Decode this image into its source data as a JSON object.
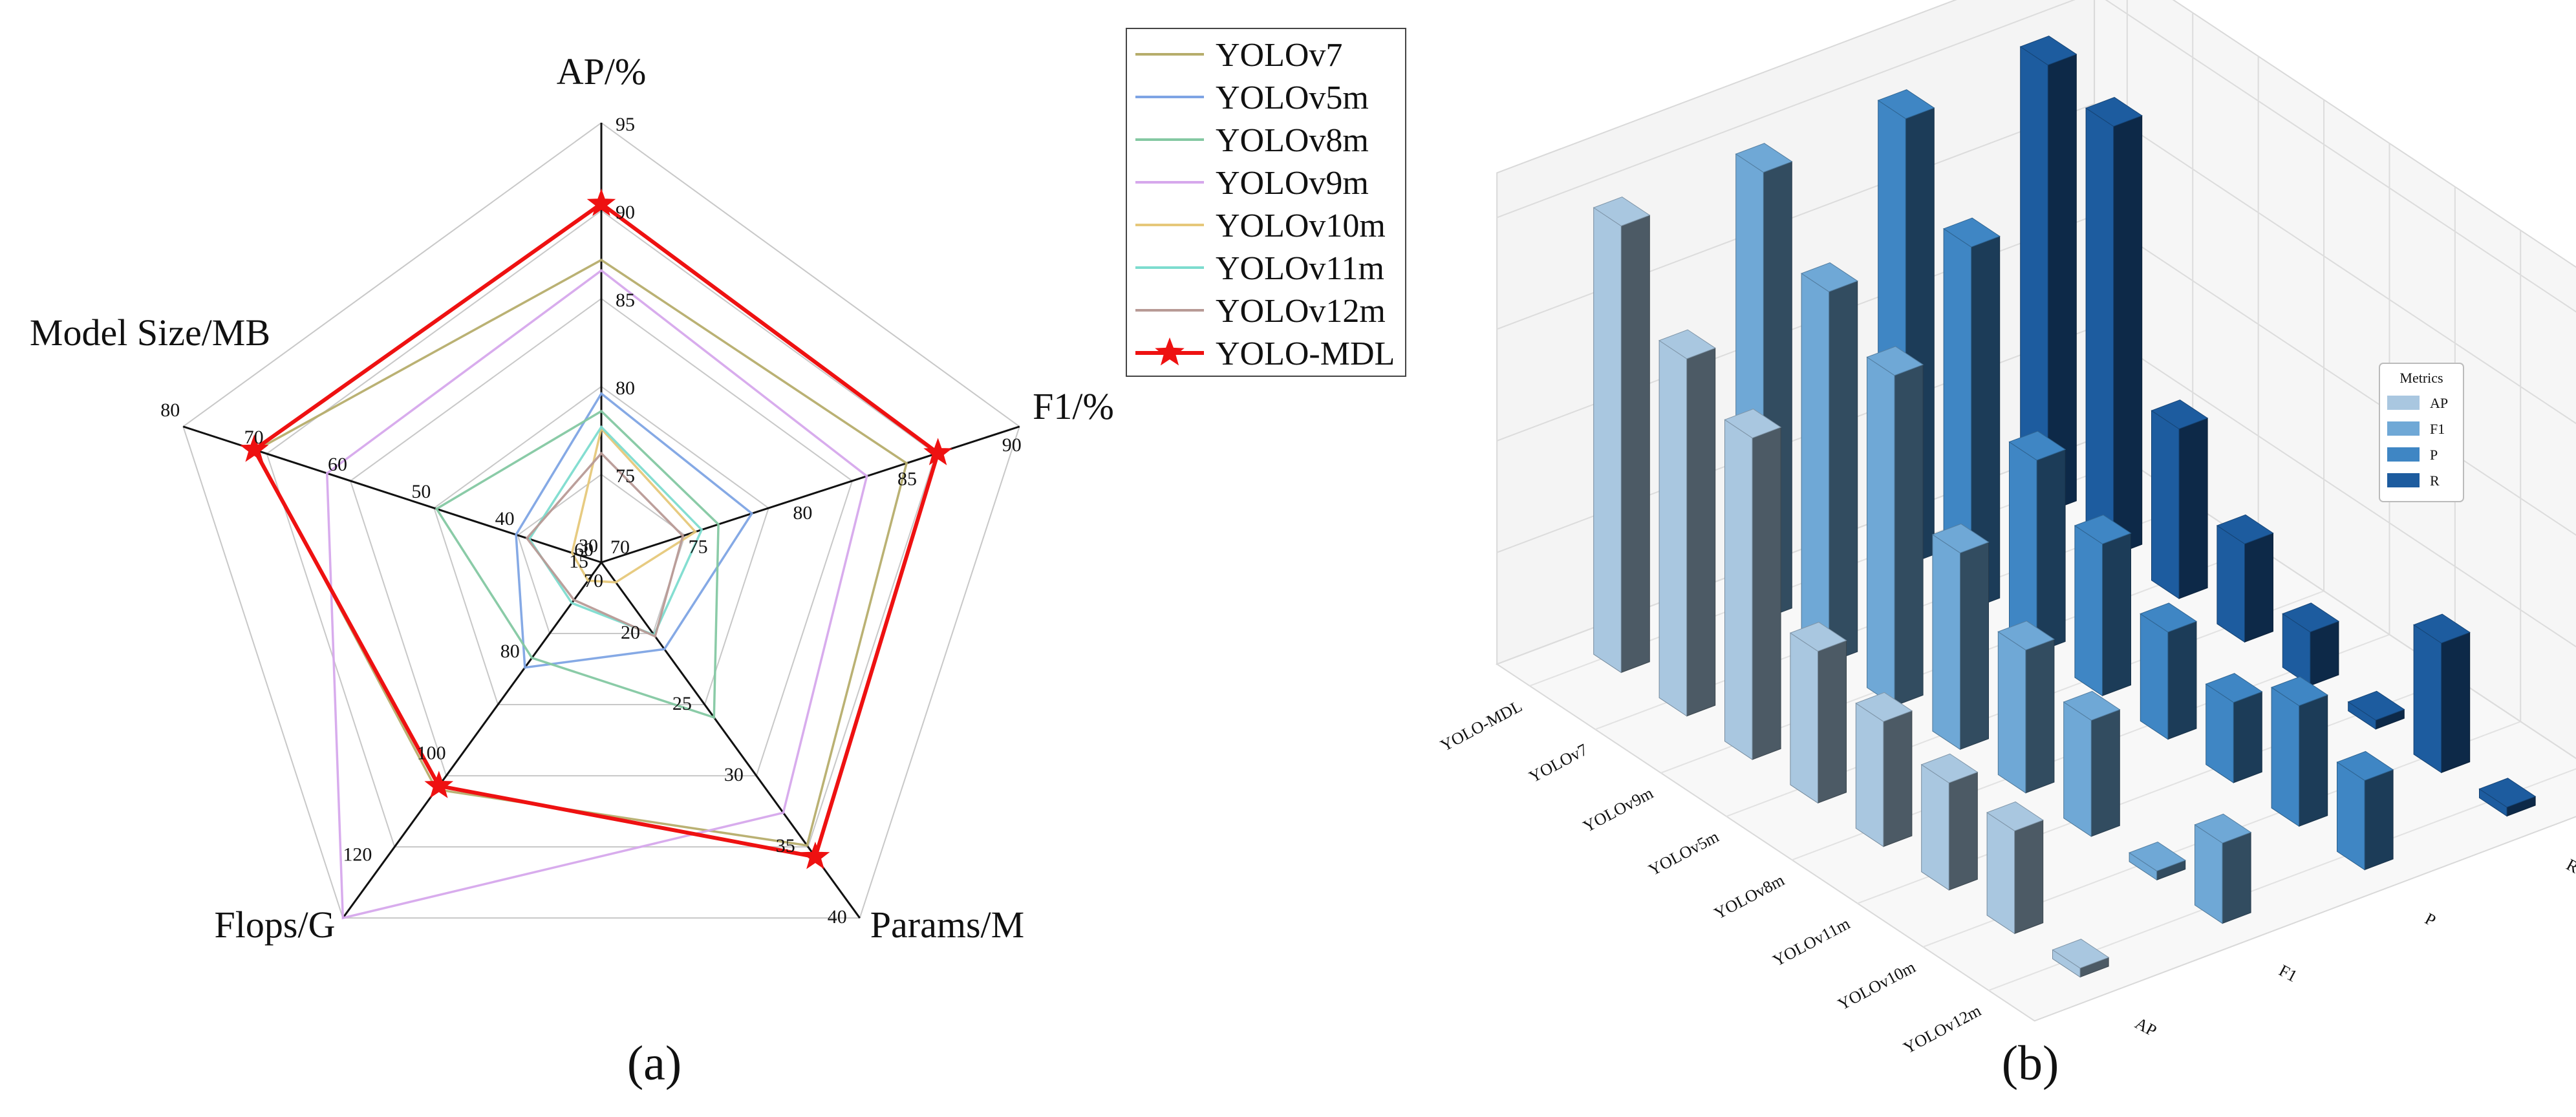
{
  "captions": {
    "a": "(a)",
    "b": "(b)"
  },
  "chart_data": [
    {
      "type": "radar",
      "panel": "(a)",
      "axes": [
        {
          "name": "AP/%",
          "ticks": [
            "70",
            "75",
            "80",
            "85",
            "90",
            "95"
          ],
          "range": [
            70,
            95
          ]
        },
        {
          "name": "F1/%",
          "ticks": [
            "70",
            "75",
            "80",
            "85",
            "90"
          ],
          "range": [
            70,
            90
          ]
        },
        {
          "name": "Params/M",
          "ticks": [
            "15",
            "20",
            "25",
            "30",
            "35",
            "40"
          ],
          "range": [
            15,
            40
          ]
        },
        {
          "name": "Flops/G",
          "ticks": [
            "60",
            "80",
            "100",
            "120"
          ],
          "range": [
            60,
            130
          ]
        },
        {
          "name": "Model Size/MB",
          "ticks": [
            "30",
            "40",
            "50",
            "60",
            "70",
            "80"
          ],
          "range": [
            30,
            80
          ]
        }
      ],
      "series": [
        {
          "name": "YOLOv7",
          "color": "#b6ad6b",
          "values": [
            87.2,
            84.6,
            34.9,
            104.7,
            71.3
          ]
        },
        {
          "name": "YOLOv5m",
          "color": "#7ea4e4",
          "values": [
            79.6,
            77.2,
            21.1,
            80.7,
            40.2
          ]
        },
        {
          "name": "YOLOv8m",
          "color": "#84c8a2",
          "values": [
            78.6,
            75.6,
            25.9,
            78.8,
            49.7
          ]
        },
        {
          "name": "YOLOv9m",
          "color": "#d6a8ec",
          "values": [
            86.6,
            82.7,
            32.6,
            130.0,
            62.8
          ]
        },
        {
          "name": "YOLOv10m",
          "color": "#e6c87a",
          "values": [
            77.6,
            74.5,
            16.4,
            63.6,
            33.5
          ]
        },
        {
          "name": "YOLOv11m",
          "color": "#7ddccf",
          "values": [
            77.7,
            74.8,
            20.1,
            68.0,
            38.6
          ]
        },
        {
          "name": "YOLOv12m",
          "color": "#b89a96",
          "values": [
            76.2,
            73.9,
            20.2,
            67.4,
            38.9
          ]
        },
        {
          "name": "YOLO-MDL",
          "color": "#ee1111",
          "values": [
            90.4,
            86.1,
            35.7,
            104.0,
            71.5
          ]
        }
      ]
    },
    {
      "type": "bar3d",
      "panel": "(b)",
      "models": [
        "YOLO-MDL",
        "YOLOv7",
        "YOLOv9m",
        "YOLOv5m",
        "YOLOv8m",
        "YOLOv11m",
        "YOLOv10m",
        "YOLOv12m"
      ],
      "metrics": [
        "AP",
        "F1",
        "P",
        "R"
      ],
      "metric_colors": [
        "#a9c7e0",
        "#6fa8d6",
        "#3f86c4",
        "#1d5c9f"
      ],
      "values": [
        [
          1.0,
          1.0,
          1.0,
          1.0
        ],
        [
          0.8,
          0.83,
          0.81,
          0.96
        ],
        [
          0.72,
          0.74,
          0.43,
          0.38
        ],
        [
          0.34,
          0.44,
          0.34,
          0.22
        ],
        [
          0.28,
          0.32,
          0.24,
          0.12
        ],
        [
          0.24,
          0.26,
          0.18,
          0.02
        ],
        [
          0.23,
          0.02,
          0.27,
          0.29
        ],
        [
          0.02,
          0.18,
          0.2,
          0.02
        ]
      ],
      "zticks": [
        "0",
        "0.25",
        "0.5",
        "0.75",
        "1.0"
      ],
      "zrange": [
        0,
        1.1
      ],
      "legend_title": "Metrics"
    }
  ]
}
